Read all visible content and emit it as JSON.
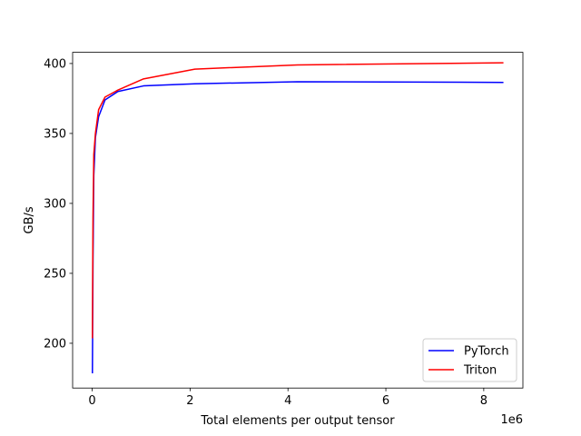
{
  "chart_data": {
    "type": "line",
    "title": "",
    "xlabel": "Total elements per output tensor",
    "ylabel": "GB/s",
    "x_offset_label": "1e6",
    "x_scale": 1000000,
    "xlim": [
      -400000,
      8800000
    ],
    "ylim": [
      168,
      408
    ],
    "x_ticks": [
      0,
      2000000,
      4000000,
      6000000,
      8000000
    ],
    "x_tick_labels": [
      "0",
      "2",
      "4",
      "6",
      "8"
    ],
    "y_ticks": [
      200,
      250,
      300,
      350,
      400
    ],
    "y_tick_labels": [
      "200",
      "250",
      "300",
      "350",
      "400"
    ],
    "grid": false,
    "legend_position": "lower-right",
    "series": [
      {
        "name": "PyTorch",
        "color": "#0000ff",
        "x": [
          4096,
          8192,
          16384,
          32768,
          65536,
          131072,
          262144,
          524288,
          1048576,
          2097152,
          4194304,
          8388608
        ],
        "y": [
          179,
          205,
          260,
          320,
          347,
          362,
          374,
          380,
          384,
          385.5,
          387,
          386.5
        ]
      },
      {
        "name": "Triton",
        "color": "#ff0000",
        "x": [
          4096,
          8192,
          16384,
          32768,
          65536,
          131072,
          262144,
          524288,
          1048576,
          2097152,
          4194304,
          8388608
        ],
        "y": [
          204,
          240,
          290,
          335,
          350,
          367,
          376,
          381,
          389,
          396,
          399,
          400.5
        ]
      }
    ]
  }
}
